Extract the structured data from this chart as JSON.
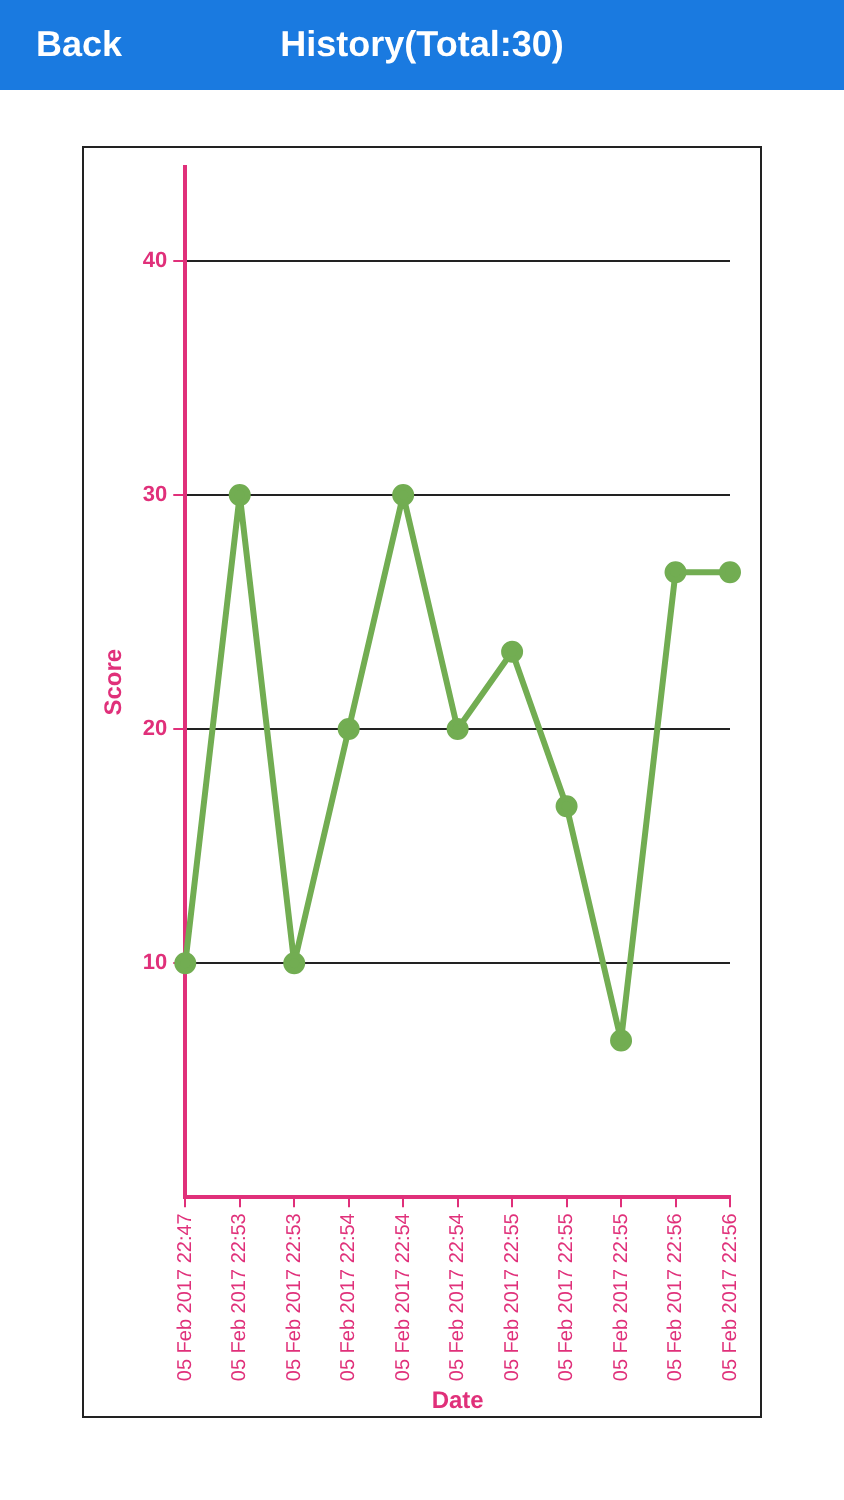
{
  "chart_data": {
    "type": "line",
    "title": "History(Total:30)",
    "annotations": [
      "Back"
    ],
    "xlabel": "Date",
    "ylabel": "Score",
    "categories": [
      "05 Feb 2017 22:47",
      "05 Feb 2017 22:53",
      "05 Feb 2017 22:53",
      "05 Feb 2017 22:54",
      "05 Feb 2017 22:54",
      "05 Feb 2017 22:54",
      "05 Feb 2017 22:55",
      "05 Feb 2017 22:55",
      "05 Feb 2017 22:55",
      "05 Feb 2017 22:56",
      "05 Feb 2017 22:56"
    ],
    "series": [
      {
        "color": "#72ad52",
        "values": [
          10,
          30,
          10,
          20,
          30,
          20,
          23.3,
          16.7,
          6.7,
          26.7,
          26.7
        ]
      }
    ],
    "ylim": [
      0,
      44
    ],
    "yticks": [
      10,
      20,
      30,
      40
    ],
    "grid": "y",
    "legend": false,
    "marker": "circle",
    "line_style": "solid"
  }
}
